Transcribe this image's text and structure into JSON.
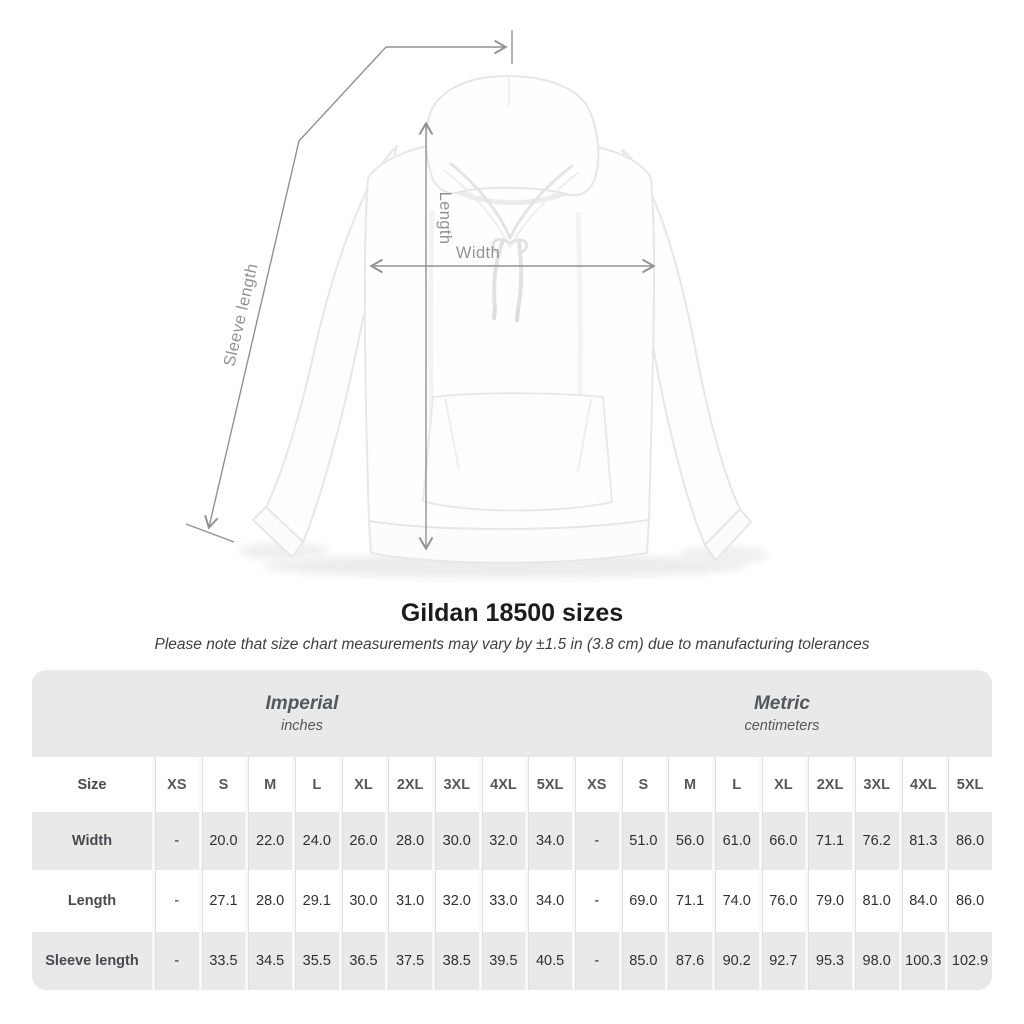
{
  "title": "Gildan 18500 sizes",
  "subtitle": "Please note that size chart measurements may vary by ±1.5 in (3.8 cm) due to manufacturing tolerances",
  "diagram": {
    "labels": {
      "sleeve_length": "Sleeve length",
      "length": "Length",
      "width": "Width"
    },
    "line_color": "#8d9296",
    "label_color": "#8f9396"
  },
  "table": {
    "groups": [
      {
        "label": "Imperial",
        "sublabel": "inches"
      },
      {
        "label": "Metric",
        "sublabel": "centimeters"
      }
    ],
    "size_header": "Size",
    "sizes": [
      "XS",
      "S",
      "M",
      "L",
      "XL",
      "2XL",
      "3XL",
      "4XL",
      "5XL"
    ],
    "rows": [
      {
        "label": "Width",
        "imperial": [
          "-",
          "20.0",
          "22.0",
          "24.0",
          "26.0",
          "28.0",
          "30.0",
          "32.0",
          "34.0"
        ],
        "metric": [
          "-",
          "51.0",
          "56.0",
          "61.0",
          "66.0",
          "71.1",
          "76.2",
          "81.3",
          "86.0"
        ]
      },
      {
        "label": "Length",
        "imperial": [
          "-",
          "27.1",
          "28.0",
          "29.1",
          "30.0",
          "31.0",
          "32.0",
          "33.0",
          "34.0"
        ],
        "metric": [
          "-",
          "69.0",
          "71.1",
          "74.0",
          "76.0",
          "79.0",
          "81.0",
          "84.0",
          "86.0"
        ]
      },
      {
        "label": "Sleeve length",
        "imperial": [
          "-",
          "33.5",
          "34.5",
          "35.5",
          "36.5",
          "37.5",
          "38.5",
          "39.5",
          "40.5"
        ],
        "metric": [
          "-",
          "85.0",
          "87.6",
          "90.2",
          "92.7",
          "95.3",
          "98.0",
          "100.3",
          "102.9"
        ]
      }
    ],
    "row_gray": "#e9e9e9"
  },
  "chart_data": {
    "type": "table",
    "title": "Gildan 18500 sizes",
    "note": "Please note that size chart measurements may vary by ±1.5 in (3.8 cm) due to manufacturing tolerances",
    "column_groups": [
      "Imperial (inches)",
      "Metric (centimeters)"
    ],
    "sizes": [
      "XS",
      "S",
      "M",
      "L",
      "XL",
      "2XL",
      "3XL",
      "4XL",
      "5XL"
    ],
    "rows": [
      {
        "measurement": "Width",
        "imperial_inches": [
          null,
          20.0,
          22.0,
          24.0,
          26.0,
          28.0,
          30.0,
          32.0,
          34.0
        ],
        "metric_centimeters": [
          null,
          51.0,
          56.0,
          61.0,
          66.0,
          71.1,
          76.2,
          81.3,
          86.0
        ]
      },
      {
        "measurement": "Length",
        "imperial_inches": [
          null,
          27.1,
          28.0,
          29.1,
          30.0,
          31.0,
          32.0,
          33.0,
          34.0
        ],
        "metric_centimeters": [
          null,
          69.0,
          71.1,
          74.0,
          76.0,
          79.0,
          81.0,
          84.0,
          86.0
        ]
      },
      {
        "measurement": "Sleeve length",
        "imperial_inches": [
          null,
          33.5,
          34.5,
          35.5,
          36.5,
          37.5,
          38.5,
          39.5,
          40.5
        ],
        "metric_centimeters": [
          null,
          85.0,
          87.6,
          90.2,
          92.7,
          95.3,
          98.0,
          100.3,
          102.9
        ]
      }
    ]
  }
}
